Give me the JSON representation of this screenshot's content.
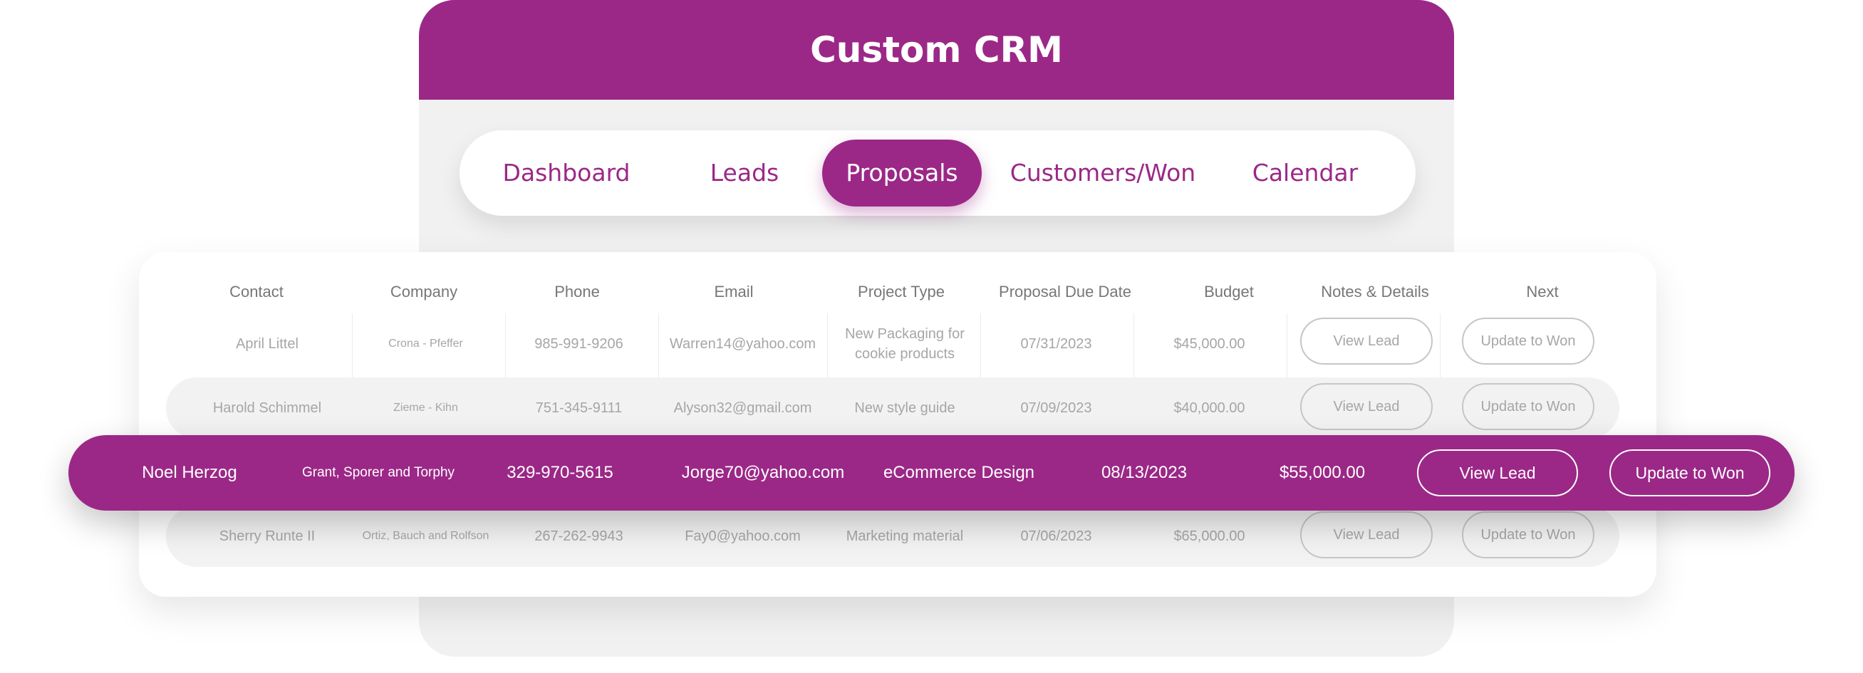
{
  "app": {
    "title": "Custom CRM"
  },
  "nav": {
    "tabs": [
      {
        "label": "Dashboard",
        "active": false
      },
      {
        "label": "Leads",
        "active": false
      },
      {
        "label": "Proposals",
        "active": true
      },
      {
        "label": "Customers/Won",
        "active": false
      },
      {
        "label": "Calendar",
        "active": false
      }
    ]
  },
  "table": {
    "columns": [
      "Contact",
      "Company",
      "Phone",
      "Email",
      "Project Type",
      "Proposal Due Date",
      "Budget",
      "Notes & Details",
      "Next"
    ],
    "rows": [
      {
        "contact": "April Littel",
        "company": "Crona - Pfeffer",
        "phone": "985-991-9206",
        "email": "Warren14@yahoo.com",
        "project_type": "New Packaging for cookie products",
        "due_date": "07/31/2023",
        "budget": "$45,000.00",
        "notes_button": "View Lead",
        "next_button": "Update to Won"
      },
      {
        "contact": "Harold Schimmel",
        "company": "Zieme - Kihn",
        "phone": "751-345-9111",
        "email": "Alyson32@gmail.com",
        "project_type": "New style guide",
        "due_date": "07/09/2023",
        "budget": "$40,000.00",
        "notes_button": "View Lead",
        "next_button": "Update to Won"
      },
      {
        "contact": "Noel Herzog",
        "company": "Grant, Sporer and Torphy",
        "phone": "329-970-5615",
        "email": "Jorge70@yahoo.com",
        "project_type": "eCommerce Design",
        "due_date": "08/13/2023",
        "budget": "$55,000.00",
        "notes_button": "View Lead",
        "next_button": "Update to Won",
        "highlighted": true
      },
      {
        "contact": "Sherry Runte II",
        "company": "Ortiz, Bauch and Rolfson",
        "phone": "267-262-9943",
        "email": "Fay0@yahoo.com",
        "project_type": "Marketing material",
        "due_date": "07/06/2023",
        "budget": "$65,000.00",
        "notes_button": "View Lead",
        "next_button": "Update to Won"
      }
    ]
  },
  "colors": {
    "brand": "#9b2887",
    "background": "#f1f1f1",
    "card": "#ffffff",
    "muted_text": "#a6a6a6"
  }
}
